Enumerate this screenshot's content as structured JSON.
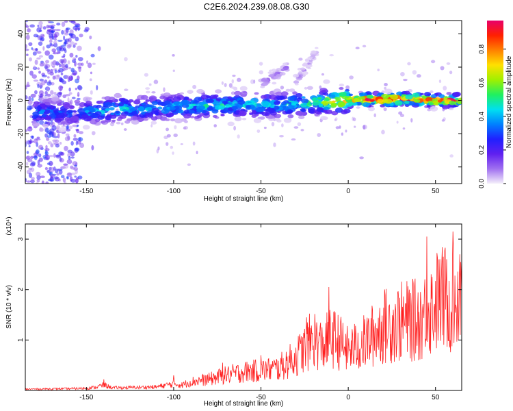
{
  "title": "C2E6.2024.239.08.08.G30",
  "chart_data": [
    {
      "type": "heatmap",
      "xlabel": "Height of straight line (km)",
      "ylabel": "Frequency (Hz)",
      "xlim": [
        -185,
        65
      ],
      "ylim": [
        -50,
        48
      ],
      "xticks": [
        -150,
        -100,
        -50,
        0,
        50
      ],
      "yticks": [
        -40,
        -20,
        0,
        20,
        40
      ],
      "colorbar": {
        "label": "Normalized spectral amplitude",
        "range": [
          0.0,
          0.97
        ],
        "ticks": [
          0.0,
          0.2,
          0.4,
          0.6,
          0.8
        ],
        "colormap": [
          "#f4eefa",
          "#a070f0",
          "#6020f0",
          "#2020ff",
          "#0080ff",
          "#00e0f0",
          "#20f060",
          "#a0f000",
          "#ffe000",
          "#ff8000",
          "#ff2000",
          "#e8006a"
        ]
      },
      "ridges": [
        {
          "x": [
            -180,
            -170,
            -160,
            -150,
            -140,
            -130,
            -120,
            -110,
            -100,
            -90,
            -80,
            -70,
            -60,
            -50,
            -40,
            -30,
            -20,
            -10,
            0,
            10,
            20,
            30,
            40,
            50,
            60,
            65
          ],
          "freq": [
            -7,
            -7,
            -7.5,
            -7,
            -6,
            -5,
            -5,
            -4.5,
            -4,
            -3.5,
            -3,
            -3,
            -2.5,
            -2.5,
            -3,
            -2,
            -1,
            -0.5,
            0,
            0.5,
            0.5,
            1,
            0.5,
            0,
            0,
            0
          ],
          "amplitude": [
            0.35,
            0.35,
            0.3,
            0.38,
            0.42,
            0.42,
            0.4,
            0.4,
            0.42,
            0.44,
            0.45,
            0.45,
            0.45,
            0.45,
            0.42,
            0.45,
            0.55,
            0.65,
            0.8,
            0.9,
            0.95,
            0.9,
            0.85,
            0.85,
            0.85,
            0.8
          ]
        },
        {
          "x": [
            -50,
            -45,
            -40,
            -35
          ],
          "freq": [
            10,
            13,
            16,
            20
          ],
          "amplitude": [
            0.1,
            0.1,
            0.1,
            0.1
          ]
        },
        {
          "x": [
            -30,
            -26,
            -22,
            -18
          ],
          "freq": [
            12,
            17,
            23,
            30
          ],
          "amplitude": [
            0.08,
            0.08,
            0.06,
            0.05
          ]
        }
      ]
    },
    {
      "type": "line",
      "xlabel": "Height of straight line (km)",
      "ylabel": "SNR (10 * v/v)",
      "yscale_label": "(x10⁴)",
      "xlim": [
        -185,
        65
      ],
      "ylim": [
        0,
        3.3
      ],
      "xticks": [
        -150,
        -100,
        -50,
        0,
        50
      ],
      "yticks": [
        1,
        2,
        3
      ],
      "color": "#ff2020",
      "series": [
        {
          "x": [
            -185,
            -160,
            -150,
            -145,
            -140,
            -135,
            -120,
            -110,
            -100,
            -95,
            -90,
            -80,
            -70,
            -60,
            -50,
            -40,
            -30,
            -25,
            -20,
            -15,
            -10,
            -5,
            0,
            10,
            20,
            30,
            40,
            45,
            50,
            55,
            60,
            65
          ],
          "y": [
            0.03,
            0.04,
            0.05,
            0.07,
            0.12,
            0.06,
            0.07,
            0.08,
            0.15,
            0.12,
            0.2,
            0.25,
            0.35,
            0.42,
            0.45,
            0.5,
            0.75,
            0.95,
            1.2,
            1.0,
            1.2,
            1.1,
            0.9,
            1.1,
            1.45,
            1.55,
            1.6,
            1.75,
            2.0,
            2.1,
            2.0,
            2.3
          ],
          "peaks": [
            {
              "x": -140,
              "y": 0.22
            },
            {
              "x": -100,
              "y": 0.3
            },
            {
              "x": -72,
              "y": 0.55
            },
            {
              "x": -50,
              "y": 0.7
            },
            {
              "x": -24,
              "y": 1.45
            },
            {
              "x": -11,
              "y": 2.05
            },
            {
              "x": 35,
              "y": 2.0
            },
            {
              "x": 45,
              "y": 3.05
            },
            {
              "x": 60,
              "y": 3.15
            },
            {
              "x": 64,
              "y": 2.7
            }
          ]
        }
      ]
    }
  ]
}
